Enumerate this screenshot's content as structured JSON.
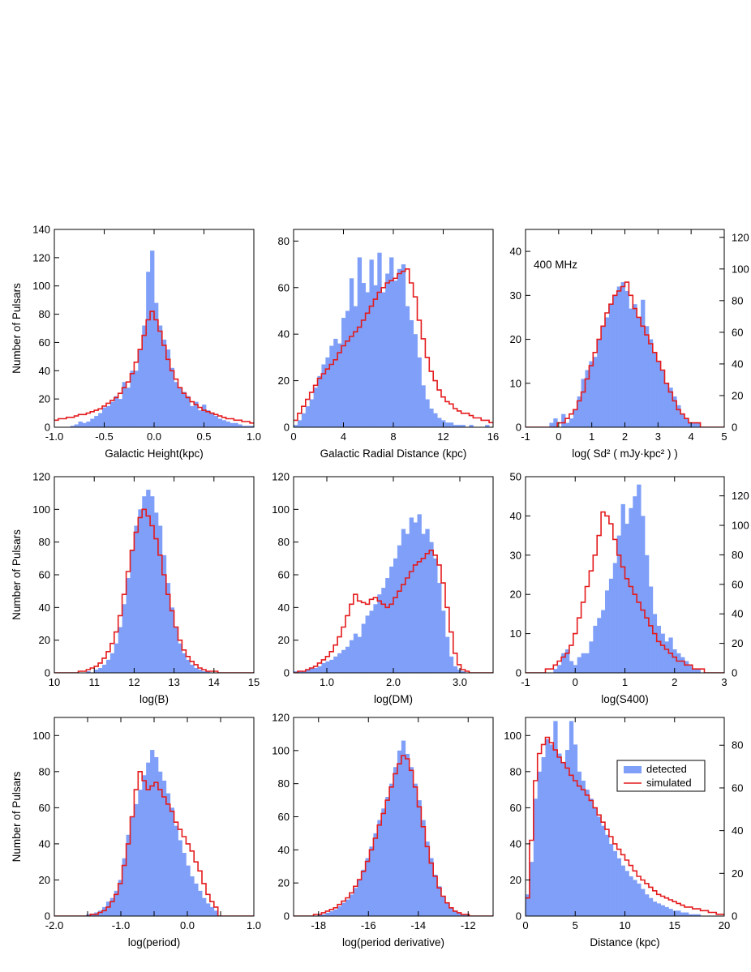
{
  "figure": {
    "y_axis_title": "Number of Pulsars",
    "legend": {
      "detected": "detected",
      "simulated": "simulated"
    },
    "colors": {
      "detected": "#7f9ff8",
      "simulated": "#e41a1c",
      "axis": "#000000"
    }
  },
  "chart_data": [
    {
      "type": "bar",
      "xlabel": "Galactic Height(kpc)",
      "xlim": [
        -1,
        1
      ],
      "ylim": [
        0,
        140
      ],
      "xticks": [
        -1,
        -0.5,
        0,
        0.5,
        1
      ],
      "xtick_labels": [
        "-1.0",
        "-0.5",
        "0.0",
        "0.5",
        "1.0"
      ],
      "yticks": [
        0,
        20,
        40,
        60,
        80,
        100,
        120,
        140
      ],
      "ytick_labels": [
        "0",
        "20",
        "40",
        "60",
        "80",
        "100",
        "120",
        "140"
      ],
      "detected": {
        "x0": -1,
        "dx": 0.04,
        "values": [
          0,
          0,
          0,
          0,
          1,
          2,
          4,
          3,
          4,
          6,
          8,
          10,
          14,
          15,
          18,
          22,
          20,
          32,
          28,
          40,
          40,
          55,
          72,
          110,
          125,
          88,
          72,
          62,
          55,
          42,
          32,
          28,
          25,
          22,
          15,
          18,
          12,
          16,
          12,
          10,
          8,
          6,
          5,
          4,
          3,
          3,
          2,
          1,
          1,
          1
        ]
      },
      "simulated": {
        "x0": -1,
        "dx": 0.04,
        "values": [
          5,
          6,
          6,
          7,
          7,
          8,
          9,
          9,
          10,
          11,
          12,
          13,
          15,
          17,
          19,
          21,
          24,
          28,
          32,
          38,
          46,
          55,
          65,
          76,
          82,
          76,
          68,
          58,
          48,
          40,
          34,
          28,
          24,
          21,
          18,
          16,
          14,
          12,
          11,
          10,
          9,
          8,
          7,
          6,
          6,
          5,
          5,
          4,
          4,
          3
        ]
      }
    },
    {
      "type": "bar",
      "xlabel": "Galactic Radial Distance (kpc)",
      "xlim": [
        0,
        16
      ],
      "ylim": [
        0,
        85
      ],
      "xticks": [
        0,
        4,
        8,
        12,
        16
      ],
      "xtick_labels": [
        "0",
        "4",
        "8",
        "12",
        "16"
      ],
      "yticks": [
        0,
        20,
        40,
        60,
        80
      ],
      "ytick_labels": [
        "0",
        "20",
        "40",
        "60",
        "80"
      ],
      "detected": {
        "x0": 0,
        "dx": 0.32,
        "values": [
          1,
          3,
          6,
          9,
          12,
          17,
          22,
          27,
          30,
          35,
          38,
          36,
          47,
          50,
          64,
          52,
          73,
          62,
          58,
          72,
          61,
          75,
          58,
          66,
          73,
          63,
          68,
          70,
          52,
          46,
          40,
          30,
          18,
          12,
          8,
          6,
          4,
          3,
          2,
          2,
          1,
          1,
          1,
          0,
          1,
          0,
          0,
          0,
          1,
          0
        ]
      },
      "simulated": {
        "x0": 0,
        "dx": 0.32,
        "values": [
          3,
          6,
          9,
          12,
          15,
          18,
          21,
          23,
          25,
          27,
          29,
          32,
          35,
          37,
          39,
          41,
          43,
          46,
          49,
          52,
          55,
          58,
          60,
          62,
          63,
          64,
          66,
          67,
          68,
          62,
          56,
          46,
          38,
          30,
          24,
          20,
          16,
          13,
          11,
          10,
          8,
          7,
          6,
          6,
          5,
          4,
          4,
          3,
          3,
          2
        ]
      }
    },
    {
      "type": "bar",
      "xlabel": "log( Sd² ( mJy·kpc² ) )",
      "annotation": "400 MHz",
      "xlim": [
        -1,
        5
      ],
      "ylim": [
        0,
        45
      ],
      "xticks": [
        -1,
        0,
        1,
        2,
        3,
        4,
        5
      ],
      "xtick_labels": [
        "-1",
        "0",
        "1",
        "2",
        "3",
        "4",
        "5"
      ],
      "yticks": [
        0,
        10,
        20,
        30,
        40
      ],
      "ytick_labels": [
        "0",
        "10",
        "20",
        "30",
        "40"
      ],
      "right_ticks": [
        0,
        20,
        40,
        60,
        80,
        100,
        120
      ],
      "right_max": 125,
      "detected": {
        "x0": -1,
        "dx": 0.12,
        "values": [
          0,
          0,
          0,
          0,
          0,
          0,
          1,
          2,
          0,
          3,
          1,
          2,
          4,
          7,
          11,
          13,
          15,
          16,
          20,
          23,
          25,
          28,
          30,
          32,
          33,
          31,
          27,
          28,
          25,
          29,
          23,
          20,
          17,
          15,
          13,
          10,
          9,
          7,
          5,
          3,
          2,
          1,
          1,
          1,
          0,
          0,
          0,
          0,
          0,
          0
        ]
      },
      "simulated": {
        "x0": -1,
        "dx": 0.12,
        "values": [
          0,
          0,
          0,
          0,
          0,
          0,
          0,
          0,
          1,
          1,
          2,
          3,
          4,
          6,
          8,
          11,
          14,
          17,
          20,
          23,
          26,
          28,
          30,
          31,
          32,
          33,
          30,
          27,
          25,
          23,
          21,
          19,
          17,
          15,
          13,
          10,
          8,
          6,
          4,
          3,
          2,
          1,
          1,
          1,
          0,
          0,
          0,
          0,
          0,
          0
        ]
      }
    },
    {
      "type": "bar",
      "xlabel": "log(B)",
      "xlim": [
        10,
        15
      ],
      "ylim": [
        0,
        120
      ],
      "xticks": [
        10,
        11,
        12,
        13,
        14,
        15
      ],
      "xtick_labels": [
        "10",
        "11",
        "12",
        "13",
        "14",
        "15"
      ],
      "yticks": [
        0,
        20,
        40,
        60,
        80,
        100,
        120
      ],
      "ytick_labels": [
        "0",
        "20",
        "40",
        "60",
        "80",
        "100",
        "120"
      ],
      "detected": {
        "x0": 10,
        "dx": 0.1,
        "values": [
          0,
          0,
          0,
          0,
          0,
          0,
          0,
          0,
          1,
          0,
          2,
          3,
          5,
          8,
          12,
          18,
          28,
          42,
          58,
          75,
          90,
          100,
          108,
          112,
          108,
          98,
          90,
          72,
          55,
          40,
          28,
          18,
          12,
          8,
          5,
          3,
          2,
          1,
          1,
          0,
          0,
          0,
          0,
          0,
          0,
          0,
          0,
          0,
          0,
          0
        ]
      },
      "simulated": {
        "x0": 10,
        "dx": 0.1,
        "values": [
          0,
          0,
          0,
          0,
          0,
          0,
          1,
          1,
          2,
          3,
          4,
          6,
          9,
          13,
          18,
          25,
          35,
          48,
          62,
          75,
          86,
          95,
          100,
          96,
          90,
          82,
          72,
          60,
          48,
          38,
          28,
          20,
          14,
          10,
          7,
          5,
          3,
          2,
          1,
          1,
          1,
          0,
          0,
          0,
          0,
          0,
          0,
          0,
          0,
          0
        ]
      }
    },
    {
      "type": "bar",
      "xlabel": "log(DM)",
      "xlim": [
        0.5,
        3.5
      ],
      "ylim": [
        0,
        120
      ],
      "xticks": [
        1.0,
        2.0,
        3.0
      ],
      "xtick_labels": [
        "1.0",
        "2.0",
        "3.0"
      ],
      "yticks": [
        0,
        20,
        40,
        60,
        80,
        100,
        120
      ],
      "ytick_labels": [
        "0",
        "20",
        "40",
        "60",
        "80",
        "100",
        "120"
      ],
      "detected": {
        "x0": 0.5,
        "dx": 0.06,
        "values": [
          1,
          1,
          1,
          2,
          3,
          3,
          4,
          6,
          7,
          8,
          10,
          12,
          14,
          16,
          20,
          24,
          22,
          30,
          35,
          38,
          42,
          48,
          52,
          58,
          65,
          70,
          78,
          88,
          85,
          95,
          92,
          97,
          85,
          88,
          80,
          70,
          55,
          38,
          22,
          10,
          4,
          2,
          1,
          0,
          0,
          0,
          0,
          0,
          0,
          0
        ]
      },
      "simulated": {
        "x0": 0.5,
        "dx": 0.06,
        "values": [
          0,
          1,
          1,
          2,
          3,
          4,
          6,
          8,
          10,
          13,
          17,
          22,
          28,
          35,
          42,
          48,
          44,
          43,
          42,
          45,
          46,
          44,
          42,
          40,
          42,
          46,
          50,
          54,
          58,
          62,
          66,
          68,
          70,
          73,
          75,
          72,
          66,
          55,
          40,
          25,
          12,
          5,
          2,
          1,
          0,
          0,
          0,
          0,
          0,
          0
        ]
      }
    },
    {
      "type": "bar",
      "xlabel": "log(S400)",
      "xlim": [
        -1,
        3
      ],
      "ylim": [
        0,
        50
      ],
      "xticks": [
        -1,
        0,
        1,
        2,
        3
      ],
      "xtick_labels": [
        "-1",
        "0",
        "1",
        "2",
        "3"
      ],
      "yticks": [
        0,
        10,
        20,
        30,
        40,
        50
      ],
      "ytick_labels": [
        "0",
        "10",
        "20",
        "30",
        "40",
        "50"
      ],
      "right_ticks": [
        0,
        20,
        40,
        60,
        80,
        100,
        120
      ],
      "right_max": 133,
      "detected": {
        "x0": -1,
        "dx": 0.08,
        "values": [
          0,
          0,
          0,
          0,
          0,
          0,
          0,
          1,
          2,
          5,
          6,
          3,
          2,
          4,
          5,
          5,
          8,
          12,
          14,
          16,
          21,
          24,
          28,
          35,
          43,
          38,
          42,
          45,
          48,
          40,
          30,
          22,
          15,
          12,
          10,
          8,
          9,
          6,
          5,
          4,
          3,
          2,
          1,
          1,
          0,
          0,
          0,
          0,
          0,
          0
        ]
      },
      "simulated": {
        "x0": -1,
        "dx": 0.08,
        "values": [
          0,
          0,
          0,
          0,
          0,
          1,
          1,
          2,
          3,
          4,
          5,
          7,
          10,
          14,
          18,
          22,
          26,
          30,
          35,
          41,
          40,
          38,
          34,
          30,
          27,
          24,
          22,
          20,
          18,
          16,
          14,
          12,
          10,
          8,
          7,
          6,
          5,
          4,
          3,
          3,
          2,
          2,
          1,
          1,
          1,
          0,
          0,
          0,
          0,
          0
        ]
      }
    },
    {
      "type": "bar",
      "xlabel": "log(period)",
      "xlim": [
        -2,
        1
      ],
      "ylim": [
        0,
        110
      ],
      "xticks": [
        -2,
        -1.5,
        -1,
        -0.5,
        0,
        0.5,
        1
      ],
      "xtick_labels": [
        "-2.0",
        "",
        "-1.0",
        "",
        "0.0",
        "",
        "1.0"
      ],
      "yticks": [
        0,
        20,
        40,
        60,
        80,
        100
      ],
      "ytick_labels": [
        "0",
        "20",
        "40",
        "60",
        "80",
        "100"
      ],
      "detected": {
        "x0": -2,
        "dx": 0.06,
        "values": [
          0,
          0,
          0,
          0,
          0,
          0,
          0,
          0,
          1,
          1,
          2,
          3,
          5,
          8,
          10,
          14,
          20,
          32,
          45,
          55,
          62,
          70,
          78,
          85,
          92,
          88,
          80,
          75,
          68,
          60,
          50,
          42,
          35,
          28,
          22,
          18,
          14,
          10,
          7,
          5,
          3,
          0,
          0,
          0,
          0,
          0,
          0,
          0,
          0,
          0
        ]
      },
      "simulated": {
        "x0": -2,
        "dx": 0.06,
        "values": [
          0,
          0,
          0,
          0,
          0,
          0,
          0,
          0,
          0,
          1,
          1,
          2,
          3,
          5,
          8,
          12,
          18,
          28,
          40,
          55,
          70,
          80,
          75,
          70,
          72,
          74,
          70,
          66,
          62,
          58,
          52,
          48,
          44,
          40,
          36,
          30,
          25,
          18,
          12,
          8,
          5,
          0,
          0,
          0,
          0,
          0,
          0,
          0,
          0,
          0
        ]
      }
    },
    {
      "type": "bar",
      "xlabel": "log(period derivative)",
      "xlim": [
        -19,
        -11
      ],
      "ylim": [
        0,
        120
      ],
      "xticks": [
        -18,
        -16,
        -14,
        -12
      ],
      "xtick_labels": [
        "-18",
        "-16",
        "-14",
        "-12"
      ],
      "yticks": [
        0,
        20,
        40,
        60,
        80,
        100,
        120
      ],
      "ytick_labels": [
        "0",
        "20",
        "40",
        "60",
        "80",
        "100",
        "120"
      ],
      "detected": {
        "x0": -19,
        "dx": 0.16,
        "values": [
          0,
          0,
          0,
          0,
          0,
          0,
          1,
          1,
          2,
          3,
          4,
          6,
          8,
          10,
          13,
          17,
          22,
          28,
          35,
          42,
          50,
          58,
          65,
          72,
          80,
          90,
          100,
          106,
          98,
          90,
          80,
          70,
          58,
          45,
          35,
          25,
          18,
          12,
          8,
          5,
          3,
          2,
          1,
          1,
          0,
          0,
          0,
          0,
          0,
          0
        ]
      },
      "simulated": {
        "x0": -19,
        "dx": 0.16,
        "values": [
          0,
          0,
          0,
          0,
          0,
          1,
          1,
          2,
          3,
          4,
          5,
          7,
          9,
          11,
          14,
          18,
          22,
          27,
          33,
          40,
          47,
          55,
          62,
          70,
          78,
          86,
          92,
          97,
          95,
          88,
          78,
          66,
          54,
          42,
          32,
          24,
          17,
          12,
          8,
          5,
          3,
          2,
          1,
          1,
          0,
          0,
          0,
          0,
          0,
          0
        ]
      }
    },
    {
      "type": "bar",
      "xlabel": "Distance (kpc)",
      "xlim": [
        0,
        20
      ],
      "ylim": [
        0,
        110
      ],
      "xticks": [
        0,
        5,
        10,
        15,
        20
      ],
      "xtick_labels": [
        "0",
        "5",
        "10",
        "15",
        "20"
      ],
      "yticks": [
        0,
        20,
        40,
        60,
        80,
        100
      ],
      "ytick_labels": [
        "0",
        "20",
        "40",
        "60",
        "80",
        "100"
      ],
      "right_ticks": [
        0,
        20,
        40,
        60,
        80
      ],
      "right_max": 93,
      "legend_position": "top-right",
      "detected": {
        "x0": 0,
        "dx": 0.4,
        "values": [
          12,
          30,
          65,
          80,
          88,
          98,
          95,
          108,
          90,
          85,
          92,
          108,
          95,
          80,
          75,
          70,
          65,
          60,
          55,
          50,
          45,
          40,
          36,
          32,
          28,
          25,
          22,
          20,
          18,
          15,
          12,
          10,
          8,
          7,
          6,
          5,
          4,
          3,
          3,
          2,
          2,
          1,
          1,
          1,
          0,
          0,
          0,
          0,
          0,
          0
        ]
      },
      "simulated": {
        "x0": 0,
        "dx": 0.4,
        "values": [
          10,
          42,
          75,
          90,
          95,
          99,
          96,
          92,
          88,
          85,
          82,
          78,
          75,
          72,
          70,
          67,
          64,
          60,
          56,
          52,
          48,
          44,
          40,
          37,
          34,
          31,
          28,
          25,
          22,
          20,
          18,
          16,
          14,
          12,
          11,
          10,
          9,
          8,
          7,
          6,
          5,
          5,
          4,
          4,
          3,
          3,
          2,
          2,
          1,
          1
        ]
      }
    }
  ]
}
